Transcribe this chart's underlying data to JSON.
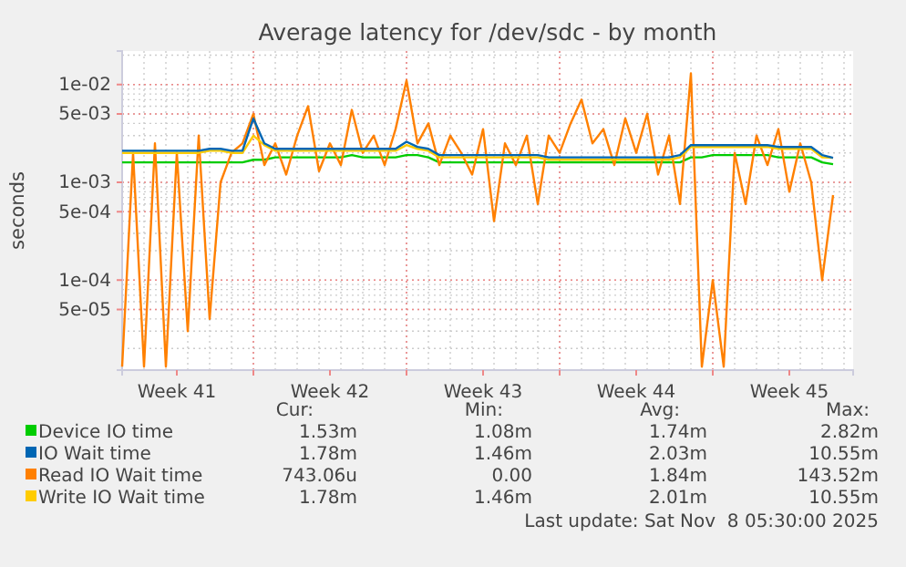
{
  "chart_data": {
    "type": "line",
    "title": "Average latency for /dev/sdc - by month",
    "ylabel": "seconds",
    "x": [
      "2025-10-07T00:00",
      "2025-10-07T12:00",
      "2025-10-08T00:00",
      "2025-10-08T12:00",
      "2025-10-09T00:00",
      "2025-10-09T12:00",
      "2025-10-10T00:00",
      "2025-10-10T12:00",
      "2025-10-11T00:00",
      "2025-10-11T12:00",
      "2025-10-12T00:00",
      "2025-10-12T12:00",
      "2025-10-13T00:00",
      "2025-10-13T12:00",
      "2025-10-14T00:00",
      "2025-10-14T12:00",
      "2025-10-15T00:00",
      "2025-10-15T12:00",
      "2025-10-16T00:00",
      "2025-10-16T12:00",
      "2025-10-17T00:00",
      "2025-10-17T12:00",
      "2025-10-18T00:00",
      "2025-10-18T12:00",
      "2025-10-19T00:00",
      "2025-10-19T12:00",
      "2025-10-20T00:00",
      "2025-10-20T12:00",
      "2025-10-21T00:00",
      "2025-10-21T12:00",
      "2025-10-22T00:00",
      "2025-10-22T12:00",
      "2025-10-23T00:00",
      "2025-10-23T12:00",
      "2025-10-24T00:00",
      "2025-10-24T12:00",
      "2025-10-25T00:00",
      "2025-10-25T12:00",
      "2025-10-26T00:00",
      "2025-10-26T12:00",
      "2025-10-27T00:00",
      "2025-10-27T12:00",
      "2025-10-28T00:00",
      "2025-10-28T12:00",
      "2025-10-29T00:00",
      "2025-10-29T12:00",
      "2025-10-30T00:00",
      "2025-10-30T12:00",
      "2025-10-31T00:00",
      "2025-10-31T12:00",
      "2025-11-01T00:00",
      "2025-11-01T12:00",
      "2025-11-02T00:00",
      "2025-11-02T12:00",
      "2025-11-03T00:00",
      "2025-11-03T12:00",
      "2025-11-04T00:00",
      "2025-11-04T12:00",
      "2025-11-05T00:00",
      "2025-11-05T12:00",
      "2025-11-06T00:00",
      "2025-11-06T12:00",
      "2025-11-07T00:00",
      "2025-11-07T12:00",
      "2025-11-08T00:00",
      "2025-11-08T12:00"
    ],
    "series": [
      {
        "name": "Device IO time",
        "color": "#00cc00",
        "values": [
          0.0016,
          0.0016,
          0.0016,
          0.0016,
          0.0016,
          0.0016,
          0.0016,
          0.0016,
          0.0016,
          0.0016,
          0.0016,
          0.0016,
          0.0017,
          0.0017,
          0.0018,
          0.0018,
          0.0018,
          0.0018,
          0.0018,
          0.0018,
          0.0018,
          0.0019,
          0.0018,
          0.0018,
          0.0018,
          0.0018,
          0.0019,
          0.0019,
          0.0018,
          0.0016,
          0.0016,
          0.0016,
          0.0016,
          0.0016,
          0.0016,
          0.0016,
          0.0016,
          0.0016,
          0.0016,
          0.0016,
          0.0016,
          0.0016,
          0.0016,
          0.0016,
          0.0016,
          0.0016,
          0.0016,
          0.0016,
          0.0016,
          0.0016,
          0.0016,
          0.0016,
          0.0018,
          0.0018,
          0.0019,
          0.0019,
          0.0019,
          0.0019,
          0.0019,
          0.0019,
          0.0018,
          0.0018,
          0.0018,
          0.0018,
          0.0016,
          0.00153
        ]
      },
      {
        "name": "IO Wait time",
        "color": "#0066b3",
        "values": [
          0.0021,
          0.0021,
          0.0021,
          0.0021,
          0.0021,
          0.0021,
          0.0021,
          0.0021,
          0.0022,
          0.0022,
          0.0021,
          0.0021,
          0.0045,
          0.0025,
          0.0022,
          0.0022,
          0.0022,
          0.0022,
          0.0022,
          0.0022,
          0.0022,
          0.0022,
          0.0022,
          0.0022,
          0.0022,
          0.0022,
          0.0026,
          0.0023,
          0.0022,
          0.0019,
          0.0019,
          0.0019,
          0.0019,
          0.0019,
          0.0019,
          0.0019,
          0.0019,
          0.0019,
          0.0019,
          0.0018,
          0.0018,
          0.0018,
          0.0018,
          0.0018,
          0.0018,
          0.0018,
          0.0018,
          0.0018,
          0.0018,
          0.0018,
          0.0018,
          0.0019,
          0.0024,
          0.0024,
          0.0024,
          0.0024,
          0.0024,
          0.0024,
          0.0024,
          0.0024,
          0.0023,
          0.0023,
          0.0023,
          0.0023,
          0.0019,
          0.00178
        ]
      },
      {
        "name": "Read IO Wait time",
        "color": "#ff8000",
        "values": [
          1.3e-05,
          0.002,
          1.3e-05,
          0.0025,
          1.3e-05,
          0.002,
          3e-05,
          0.003,
          4e-05,
          0.001,
          0.002,
          0.0025,
          0.005,
          0.0015,
          0.0025,
          0.0012,
          0.003,
          0.006,
          0.0013,
          0.0025,
          0.0015,
          0.0055,
          0.002,
          0.003,
          0.0015,
          0.0035,
          0.011,
          0.0025,
          0.004,
          0.0015,
          0.003,
          0.002,
          0.0012,
          0.0035,
          0.0004,
          0.0025,
          0.0015,
          0.003,
          0.0006,
          0.003,
          0.002,
          0.004,
          0.007,
          0.0025,
          0.0035,
          0.0015,
          0.0045,
          0.002,
          0.005,
          0.0012,
          0.003,
          0.0006,
          0.013,
          1.3e-05,
          0.0001,
          1.3e-05,
          0.002,
          0.0006,
          0.003,
          0.0015,
          0.0035,
          0.0008,
          0.0025,
          0.001,
          0.0001,
          0.00074
        ]
      },
      {
        "name": "Write IO Wait time",
        "color": "#ffcc00",
        "values": [
          0.002,
          0.002,
          0.002,
          0.002,
          0.002,
          0.002,
          0.002,
          0.002,
          0.0021,
          0.0021,
          0.002,
          0.002,
          0.003,
          0.0024,
          0.0021,
          0.0021,
          0.0021,
          0.0021,
          0.0021,
          0.0021,
          0.0021,
          0.0021,
          0.0021,
          0.0021,
          0.0021,
          0.0021,
          0.0024,
          0.0022,
          0.0021,
          0.0018,
          0.0018,
          0.0018,
          0.0018,
          0.0018,
          0.0018,
          0.0018,
          0.0018,
          0.0018,
          0.0018,
          0.0017,
          0.0017,
          0.0017,
          0.0017,
          0.0017,
          0.0017,
          0.0017,
          0.0017,
          0.0017,
          0.0017,
          0.0017,
          0.0017,
          0.0018,
          0.0023,
          0.0023,
          0.0023,
          0.0023,
          0.0023,
          0.0023,
          0.0023,
          0.0023,
          0.0022,
          0.0022,
          0.0022,
          0.0022,
          0.0018,
          0.00178
        ]
      }
    ],
    "xlim": [
      "2025-10-07T00:00",
      "2025-11-09T10:00"
    ],
    "xticks": [
      {
        "value": "2025-10-09T12:00",
        "label": "Week 41"
      },
      {
        "value": "2025-10-13T00:00",
        "label": null
      },
      {
        "value": "2025-10-16T12:00",
        "label": "Week 42"
      },
      {
        "value": "2025-10-20T00:00",
        "label": null
      },
      {
        "value": "2025-10-23T12:00",
        "label": "Week 43"
      },
      {
        "value": "2025-10-27T00:00",
        "label": null
      },
      {
        "value": "2025-10-30T12:00",
        "label": "Week 44"
      },
      {
        "value": "2025-11-03T00:00",
        "label": null
      },
      {
        "value": "2025-11-06T12:00",
        "label": "Week 45"
      }
    ],
    "ylim": [
      1.2e-05,
      0.022
    ],
    "yticks": [
      {
        "value": 5e-05,
        "label": "5e-05"
      },
      {
        "value": 0.0001,
        "label": "1e-04"
      },
      {
        "value": 0.0005,
        "label": "5e-04"
      },
      {
        "value": 0.001,
        "label": "1e-03"
      },
      {
        "value": 0.005,
        "label": "5e-03"
      },
      {
        "value": 0.01,
        "label": "1e-02"
      }
    ],
    "log": "y",
    "grid": true,
    "legend": "bottom",
    "marker": "none",
    "line_style": "solid",
    "annotations": [
      "Cur:",
      "Min:",
      "Avg:",
      "Max:",
      "1.53m",
      "1.08m",
      "1.74m",
      "2.82m",
      "1.78m",
      "1.46m",
      "2.03m",
      "10.55m",
      "743.06u",
      "0.00",
      "1.84m",
      "143.52m",
      "1.78m",
      "1.46m",
      "2.01m",
      "10.55m",
      "Last update: Sat Nov  8 05:30:00 2025"
    ]
  }
}
